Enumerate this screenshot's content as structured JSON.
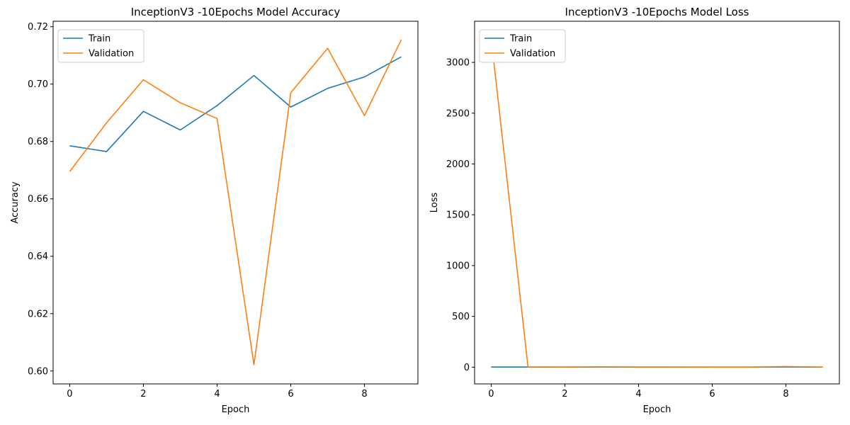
{
  "colors": {
    "train": "#1f77b4",
    "validation": "#ff7f0e"
  },
  "chart_data": [
    {
      "type": "line",
      "title": "InceptionV3 -10Epochs Model Accuracy",
      "xlabel": "Epoch",
      "ylabel": "Accuracy",
      "xlim": [
        -0.45,
        9.45
      ],
      "ylim": [
        0.5955,
        0.7219
      ],
      "xticks": [
        0,
        2,
        4,
        6,
        8
      ],
      "xtick_labels": [
        "0",
        "2",
        "4",
        "6",
        "8"
      ],
      "yticks": [
        0.6,
        0.62,
        0.64,
        0.66,
        0.68,
        0.7,
        0.72
      ],
      "ytick_labels": [
        "0.60",
        "0.62",
        "0.64",
        "0.66",
        "0.68",
        "0.70",
        "0.72"
      ],
      "grid": false,
      "legend_position": "top-left",
      "x": [
        0,
        1,
        2,
        3,
        4,
        5,
        6,
        7,
        8,
        9
      ],
      "series": [
        {
          "name": "Train",
          "values": [
            0.6785,
            0.6765,
            0.6905,
            0.684,
            0.6925,
            0.703,
            0.692,
            0.6985,
            0.7025,
            0.7095
          ]
        },
        {
          "name": "Validation",
          "values": [
            0.6695,
            0.6865,
            0.7015,
            0.6935,
            0.688,
            0.6022,
            0.697,
            0.7125,
            0.689,
            0.7155
          ]
        }
      ]
    },
    {
      "type": "line",
      "title": "InceptionV3 -10Epochs Model Loss",
      "xlabel": "Epoch",
      "ylabel": "Loss",
      "xlim": [
        -0.45,
        9.45
      ],
      "ylim": [
        -165,
        3405
      ],
      "xticks": [
        0,
        2,
        4,
        6,
        8
      ],
      "xtick_labels": [
        "0",
        "2",
        "4",
        "6",
        "8"
      ],
      "yticks": [
        0,
        500,
        1000,
        1500,
        2000,
        2500,
        3000
      ],
      "ytick_labels": [
        "0",
        "500",
        "1000",
        "1500",
        "2000",
        "2500",
        "3000"
      ],
      "grid": false,
      "legend_position": "top-left",
      "x": [
        0,
        1,
        2,
        3,
        4,
        5,
        6,
        7,
        8,
        9
      ],
      "series": [
        {
          "name": "Train",
          "values": [
            0.9,
            0.85,
            0.8,
            0.8,
            0.78,
            0.77,
            0.76,
            0.75,
            0.74,
            0.73
          ]
        },
        {
          "name": "Validation",
          "values": [
            3240,
            2.5,
            1.8,
            3.5,
            2.0,
            1.5,
            1.2,
            1.0,
            6.0,
            1.3
          ]
        }
      ]
    }
  ]
}
